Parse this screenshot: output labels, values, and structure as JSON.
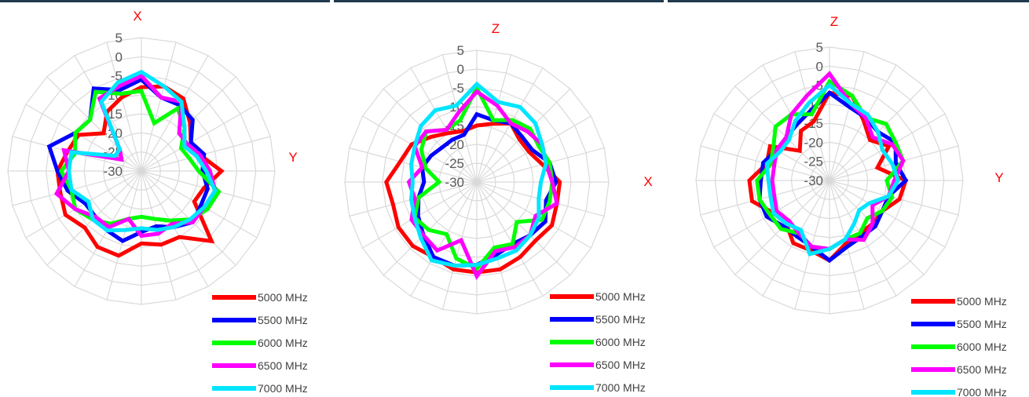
{
  "colors": {
    "5000 MHz": "#ff0000",
    "5500 MHz": "#0000ff",
    "6000 MHz": "#00ff00",
    "6500 MHz": "#ff00ff",
    "7000 MHz": "#00e5ff"
  },
  "chart_data": [
    {
      "type": "radar",
      "top_label": "X",
      "side_label": "Y",
      "r_ticks": [
        "5",
        "0",
        "-5",
        "-10",
        "-15",
        "-20",
        "-25",
        "-30"
      ],
      "r_range": [
        -30,
        5
      ],
      "grid": true,
      "legend_position": "bottom-right",
      "series": [
        {
          "name": "5000 MHz",
          "values": [
            -8,
            -7,
            -8,
            -12,
            -15,
            -14,
            -9,
            -13,
            -14,
            -4,
            -10,
            -10,
            -11,
            -7,
            -7,
            -9,
            -7,
            -8,
            -8,
            -10,
            -11,
            -16,
            -12,
            -10
          ]
        },
        {
          "name": "5500 MHz",
          "values": [
            -6,
            -10,
            -10,
            -11,
            -15,
            -13,
            -14,
            -12,
            -12,
            -11,
            -13,
            -15,
            -14,
            -11,
            -12,
            -13,
            -13,
            -10,
            -8,
            -5,
            -10,
            -11,
            -5,
            -8
          ]
        },
        {
          "name": "6000 MHz",
          "values": [
            -9,
            -17,
            -11,
            -14,
            -18,
            -17,
            -15,
            -9,
            -10,
            -12,
            -15,
            -17,
            -18,
            -17,
            -14,
            -12,
            -10,
            -11,
            -9,
            -12,
            -10,
            -11,
            -6,
            -9
          ]
        },
        {
          "name": "6500 MHz",
          "values": [
            -5,
            -10,
            -9,
            -16,
            -16,
            -14,
            -12,
            -10,
            -11,
            -11,
            -14,
            -13,
            -13,
            -17,
            -13,
            -13,
            -10,
            -7,
            -11,
            -9,
            -24,
            -22,
            -8,
            -7
          ]
        },
        {
          "name": "7000 MHz",
          "values": [
            -4,
            -7,
            -9,
            -14,
            -17,
            -15,
            -13,
            -10,
            -11,
            -12,
            -13,
            -14,
            -15,
            -14,
            -12,
            -12,
            -14,
            -11,
            -11,
            -11,
            -22,
            -22,
            -9,
            -6
          ]
        }
      ]
    },
    {
      "type": "radar",
      "top_label": "Z",
      "side_label": "X",
      "r_ticks": [
        "5",
        "0",
        "-5",
        "-10",
        "-15",
        "-20",
        "-25",
        "-30"
      ],
      "r_range": [
        -30,
        5
      ],
      "grid": true,
      "legend_position": "bottom-right",
      "series": [
        {
          "name": "5000 MHz",
          "values": [
            -15,
            -14,
            -12,
            -14,
            -14,
            -12,
            -8,
            -8,
            -7,
            -8,
            -7,
            -6,
            -6,
            -6,
            -7,
            -6,
            -6,
            -7,
            -6,
            -9,
            -10,
            -13,
            -15,
            -16
          ]
        },
        {
          "name": "5500 MHz",
          "values": [
            -12,
            -13,
            -12,
            -13,
            -13,
            -10,
            -9,
            -11,
            -9,
            -10,
            -11,
            -10,
            -8,
            -7,
            -7,
            -10,
            -12,
            -14,
            -16,
            -15,
            -16,
            -17,
            -17,
            -17
          ]
        },
        {
          "name": "6000 MHz",
          "values": [
            -5,
            -13,
            -11,
            -10,
            -11,
            -10,
            -10,
            -10,
            -10,
            -15,
            -11,
            -12,
            -7,
            -9,
            -14,
            -12,
            -11,
            -14,
            -20,
            -16,
            -13,
            -11,
            -14,
            -13
          ]
        },
        {
          "name": "6500 MHz",
          "values": [
            -6,
            -9,
            -12,
            -11,
            -10,
            -11,
            -10,
            -8,
            -12,
            -10,
            -10,
            -11,
            -5,
            -14,
            -9,
            -10,
            -10,
            -13,
            -12,
            -15,
            -11,
            -11,
            -14,
            -11
          ]
        },
        {
          "name": "7000 MHz",
          "values": [
            -4,
            -8,
            -7,
            -8,
            -10,
            -11,
            -13,
            -13,
            -11,
            -10,
            -9,
            -9,
            -8,
            -7,
            -6,
            -9,
            -11,
            -12,
            -13,
            -12,
            -11,
            -9,
            -8,
            -9
          ]
        }
      ]
    },
    {
      "type": "radar",
      "top_label": "Z",
      "side_label": "Y",
      "r_ticks": [
        "5",
        "0",
        "-5",
        "-10",
        "-15",
        "-20",
        "-25",
        "-30"
      ],
      "r_range": [
        -30,
        5
      ],
      "grid": true,
      "legend_position": "bottom-right",
      "series": [
        {
          "name": "5000 MHz",
          "values": [
            -7,
            -7,
            -12,
            -15,
            -12,
            -17,
            -10,
            -11,
            -14,
            -14,
            -14,
            -13,
            -9,
            -11,
            -11,
            -14,
            -13,
            -9,
            -9,
            -13,
            -12,
            -19,
            -15,
            -14
          ]
        },
        {
          "name": "5500 MHz",
          "values": [
            -7,
            -10,
            -11,
            -12,
            -10,
            -12,
            -10,
            -14,
            -14,
            -13,
            -13,
            -12,
            -9,
            -12,
            -13,
            -13,
            -11,
            -11,
            -12,
            -12,
            -14,
            -14,
            -13,
            -11
          ]
        },
        {
          "name": "6000 MHz",
          "values": [
            -4,
            -7,
            -11,
            -9,
            -10,
            -10,
            -15,
            -13,
            -14,
            -16,
            -14,
            -14,
            -12,
            -12,
            -14,
            -12,
            -12,
            -11,
            -11,
            -14,
            -13,
            -10,
            -10,
            -12
          ]
        },
        {
          "name": "6500 MHz",
          "values": [
            -2,
            -9,
            -11,
            -14,
            -11,
            -10,
            -13,
            -14,
            -17,
            -14,
            -12,
            -14,
            -12,
            -12,
            -14,
            -15,
            -14,
            -15,
            -15,
            -15,
            -14,
            -14,
            -10,
            -7
          ]
        },
        {
          "name": "7000 MHz",
          "values": [
            -5,
            -9,
            -10,
            -12,
            -14,
            -13,
            -12,
            -14,
            -18,
            -19,
            -17,
            -14,
            -12,
            -10,
            -15,
            -14,
            -13,
            -14,
            -14,
            -13,
            -15,
            -15,
            -12,
            -9
          ]
        }
      ]
    }
  ]
}
